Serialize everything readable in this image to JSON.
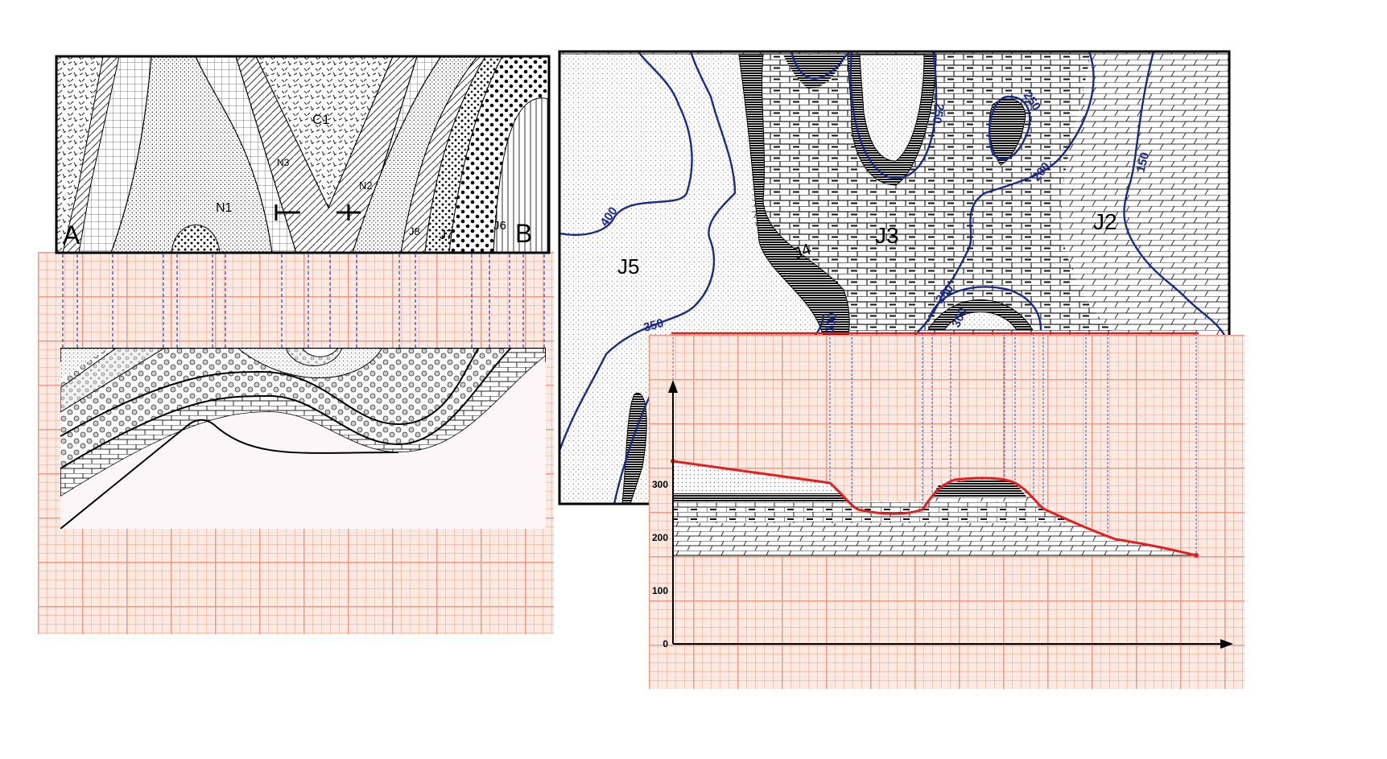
{
  "left_map": {
    "corners": {
      "a": "A",
      "b": "B"
    },
    "labels": {
      "c1": "C1",
      "n1": "N1",
      "n2": "N2",
      "n3": "N3",
      "j6": "J6",
      "j7": "J7",
      "j8": "J8"
    }
  },
  "right_map": {
    "labels": {
      "j2": "J2",
      "j3": "J3",
      "j4": "J4",
      "j5": "J5"
    },
    "contours": {
      "c150": "150",
      "c200": "200",
      "c250a": "250",
      "c250b": "250",
      "c250c": "250",
      "c300a": "300",
      "c300b": "300",
      "c350": "350",
      "c400": "400"
    }
  },
  "profile": {
    "y_ticks": [
      "300",
      "200",
      "100",
      "0"
    ]
  },
  "colors": {
    "contour": "#1a2a8a",
    "profile_line": "#e02020",
    "guide_line": "#2a3fd0"
  }
}
